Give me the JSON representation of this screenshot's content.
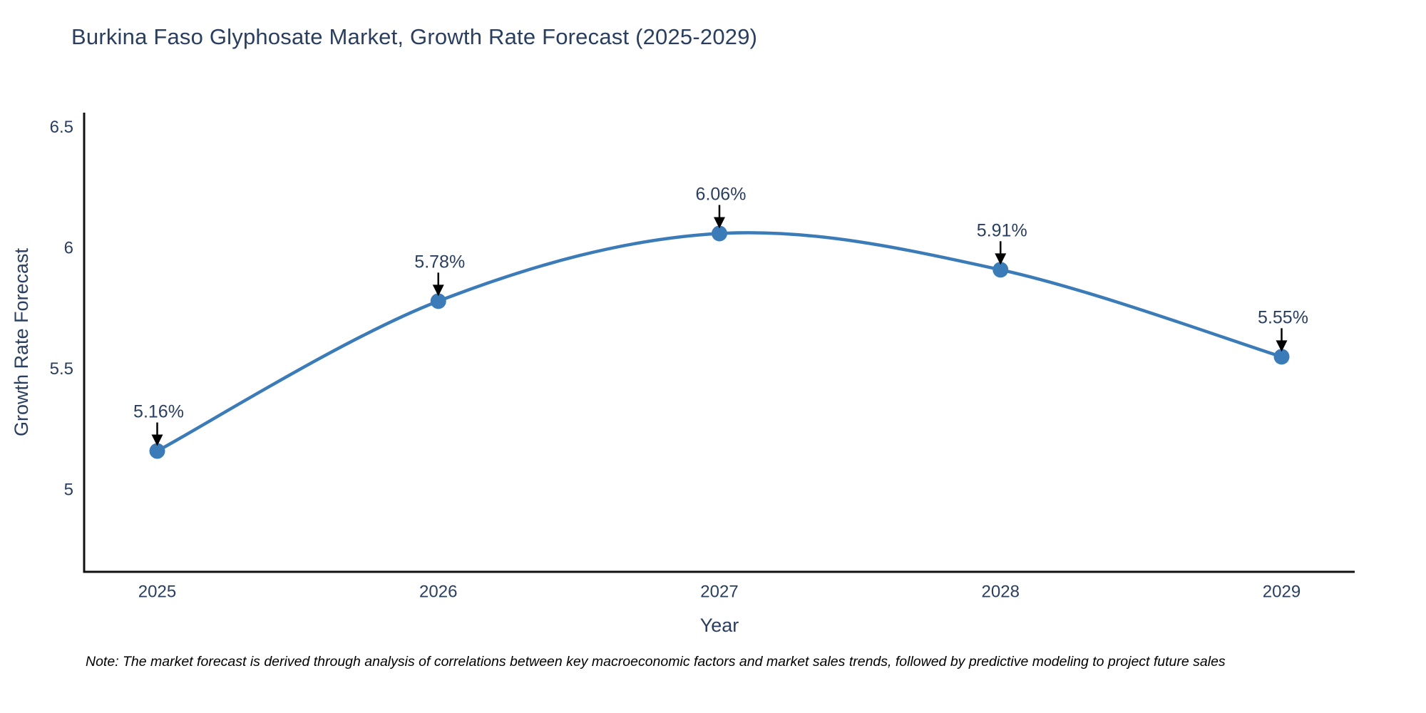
{
  "title": "Burkina Faso Glyphosate Market, Growth Rate Forecast (2025-2029)",
  "note": "Note: The market forecast is derived through analysis of correlations between key macroeconomic factors and market sales trends, followed by predictive modeling to project future sales",
  "colors": {
    "line": "#3b7cb8",
    "marker_fill": "#3b7cb8",
    "annotation_arrow": "#000000",
    "axis_line": "#111111",
    "chart_text": "#2a3f5f",
    "annotation_text": "#2a3f5f",
    "note_text": "#000000",
    "background": "#ffffff"
  },
  "chart_data": {
    "type": "line",
    "title": "Burkina Faso Glyphosate Market, Growth Rate Forecast (2025-2029)",
    "xlabel": "Year",
    "ylabel": "Growth Rate Forecast",
    "x": [
      2025,
      2026,
      2027,
      2028,
      2029
    ],
    "values": [
      5.16,
      5.78,
      6.06,
      5.91,
      5.55
    ],
    "point_labels": [
      "5.16%",
      "5.78%",
      "6.06%",
      "5.91%",
      "5.55%"
    ],
    "xtick_labels": [
      "2025",
      "2026",
      "2027",
      "2028",
      "2029"
    ],
    "ytick_values": [
      5,
      5.5,
      6,
      6.5
    ],
    "ytick_labels": [
      "5",
      "5.5",
      "6",
      "6.5"
    ],
    "xlim": [
      2024.74,
      2029.26
    ],
    "ylim": [
      4.66,
      6.56
    ],
    "grid": false,
    "legend": "none",
    "line_shape": "spline",
    "annotations": "value labels with downward arrows above each point"
  }
}
